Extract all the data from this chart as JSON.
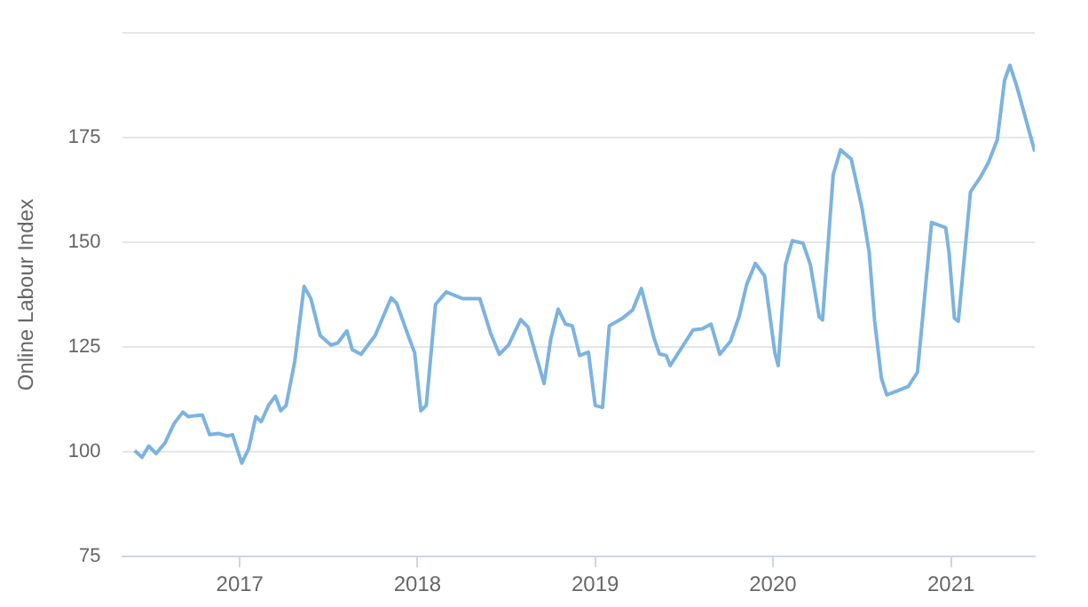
{
  "chart_data": {
    "type": "line",
    "ylabel": "Online Labour Index",
    "x": [
      "2016-05-30",
      "2016-06-14",
      "2016-06-28",
      "2016-07-13",
      "2016-07-31",
      "2016-08-19",
      "2016-09-06",
      "2016-09-17",
      "2016-10-05",
      "2016-10-16",
      "2016-10-31",
      "2016-11-18",
      "2016-12-06",
      "2016-12-17",
      "2017-01-05",
      "2017-01-19",
      "2017-02-03",
      "2017-02-14",
      "2017-03-01",
      "2017-03-15",
      "2017-03-26",
      "2017-04-06",
      "2017-04-24",
      "2017-05-13",
      "2017-05-27",
      "2017-06-15",
      "2017-07-07",
      "2017-07-21",
      "2017-08-09",
      "2017-08-20",
      "2017-09-07",
      "2017-10-06",
      "2017-11-08",
      "2017-11-19",
      "2017-12-15",
      "2017-12-26",
      "2018-01-08",
      "2018-01-19",
      "2018-02-07",
      "2018-03-01",
      "2018-04-03",
      "2018-05-09",
      "2018-05-31",
      "2018-06-18",
      "2018-07-07",
      "2018-08-01",
      "2018-08-16",
      "2018-09-18",
      "2018-10-02",
      "2018-10-17",
      "2018-11-01",
      "2018-11-15",
      "2018-11-30",
      "2018-12-18",
      "2019-01-01",
      "2019-01-16",
      "2019-01-30",
      "2019-02-25",
      "2019-03-19",
      "2019-04-06",
      "2019-05-02",
      "2019-05-13",
      "2019-05-27",
      "2019-06-04",
      "2019-06-29",
      "2019-07-21",
      "2019-08-09",
      "2019-08-27",
      "2019-09-14",
      "2019-10-06",
      "2019-10-24",
      "2019-11-08",
      "2019-11-26",
      "2019-12-15",
      "2020-01-05",
      "2020-01-12",
      "2020-01-27",
      "2020-02-10",
      "2020-03-03",
      "2020-03-18",
      "2020-04-05",
      "2020-04-12",
      "2020-05-04",
      "2020-05-19",
      "2020-06-10",
      "2020-07-02",
      "2020-07-17",
      "2020-07-28",
      "2020-08-11",
      "2020-08-22",
      "2020-09-13",
      "2020-10-05",
      "2020-10-24",
      "2020-11-03",
      "2020-11-22",
      "2020-12-21",
      "2020-12-28",
      "2021-01-08",
      "2021-01-16",
      "2021-02-10",
      "2021-03-01",
      "2021-03-19",
      "2021-04-06",
      "2021-04-21",
      "2021-05-02",
      "2021-05-16",
      "2021-06-22"
    ],
    "series": [
      {
        "color": "#7cb3e0",
        "values": [
          100.3,
          98.7,
          101.4,
          99.6,
          102.1,
          106.8,
          109.5,
          108.4,
          108.7,
          108.8,
          104.1,
          104.4,
          103.8,
          104.1,
          97.3,
          100.7,
          108.4,
          107.2,
          111.1,
          113.3,
          109.8,
          111.1,
          121.7,
          139.5,
          136.6,
          127.8,
          125.5,
          126.0,
          128.9,
          124.4,
          123.3,
          127.8,
          136.8,
          135.5,
          127.1,
          123.7,
          109.8,
          111.1,
          135.2,
          138.2,
          136.6,
          136.6,
          128.4,
          123.3,
          125.5,
          131.6,
          129.8,
          116.3,
          127.1,
          134.1,
          130.5,
          130.1,
          123.0,
          123.8,
          111.1,
          110.6,
          130.1,
          131.8,
          133.9,
          139.0,
          127.1,
          123.4,
          123.0,
          120.6,
          125.1,
          129.1,
          129.4,
          130.5,
          123.3,
          126.4,
          132.5,
          139.9,
          145.0,
          142.0,
          123.7,
          120.6,
          144.7,
          150.4,
          149.8,
          144.7,
          132.3,
          131.5,
          166.2,
          172.1,
          169.9,
          158.3,
          147.5,
          131.3,
          117.6,
          113.6,
          114.6,
          115.6,
          119.0,
          131.2,
          154.8,
          153.5,
          147.5,
          131.9,
          131.2,
          162.1,
          165.3,
          169.1,
          174.5,
          188.7,
          192.3,
          187.3,
          171.7
        ]
      }
    ],
    "xlim": [
      "2016-05-04",
      "2021-06-22"
    ],
    "xticks": [
      {
        "value": "2017-01-01",
        "label": "2017"
      },
      {
        "value": "2018-01-01",
        "label": "2018"
      },
      {
        "value": "2019-01-01",
        "label": "2019"
      },
      {
        "value": "2020-01-01",
        "label": "2020"
      },
      {
        "value": "2021-01-01",
        "label": "2021"
      }
    ],
    "ylim": [
      75,
      200
    ],
    "yticks": [
      75,
      100,
      125,
      150,
      175,
      {
        "value": 200,
        "label": null
      }
    ],
    "grid": "y",
    "marker": "none",
    "line_style": "solid",
    "legend": false
  }
}
